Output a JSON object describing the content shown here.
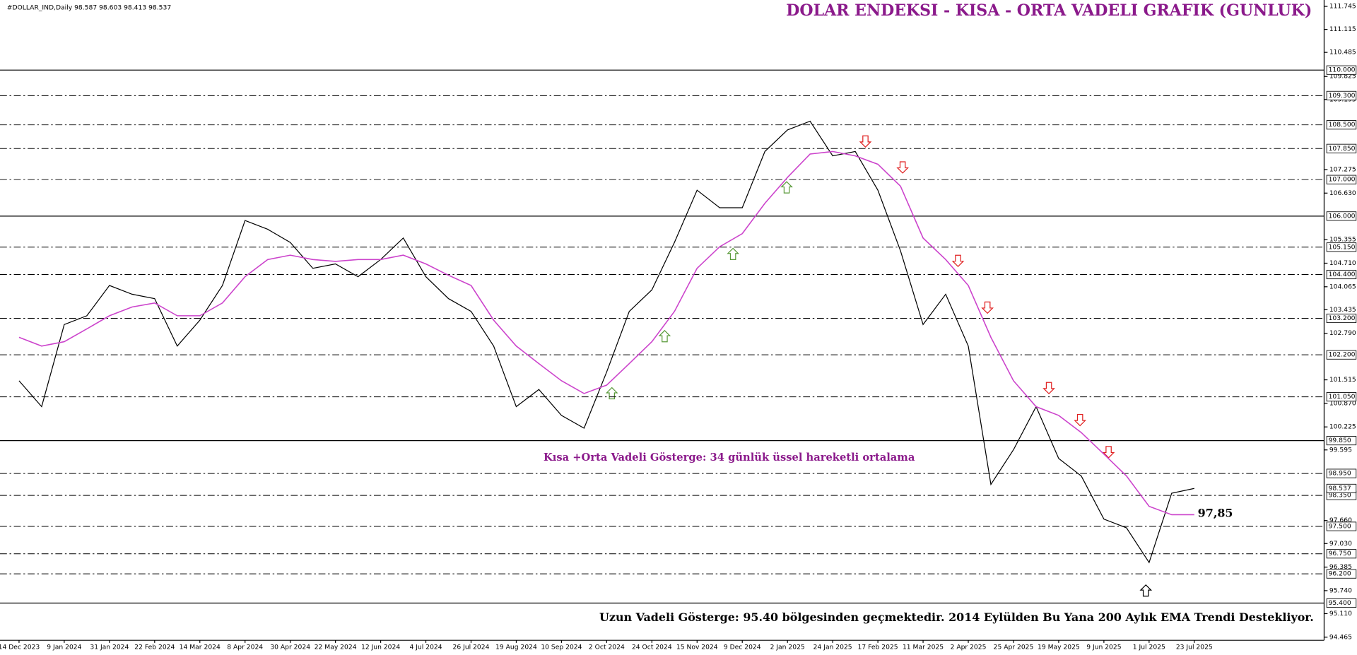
{
  "chart_data": {
    "type": "line",
    "header": "#DOLLAR_IND,Daily  98.587 98.603 98.413 98.537",
    "title": "DOLAR ENDEKSI - KISA - ORTA VADELI GRAFIK (GUNLUK)",
    "annotation": "Kısa +Orta Vadeli Gösterge: 34 günlük üssel hareketli ortalama",
    "ema_value": {
      "value": 97.85,
      "label": "97,85"
    },
    "note": "Uzun Vadeli Gösterge: 95.40 bölgesinden geçmektedir. 2014 Eylülden Bu Yana 200 Aylık EMA Trendi Destekliyor.",
    "categories": [
      "14 Dec 2023",
      null,
      "9 Jan 2024",
      null,
      "31 Jan 2024",
      null,
      "22 Feb 2024",
      null,
      "14 Mar 2024",
      null,
      "8 Apr 2024",
      null,
      "30 Apr 2024",
      null,
      "22 May 2024",
      null,
      "12 Jun 2024",
      null,
      "4 Jul 2024",
      null,
      "26 Jul 2024",
      null,
      "19 Aug 2024",
      null,
      "10 Sep 2024",
      null,
      "2 Oct 2024",
      null,
      "24 Oct 2024",
      null,
      "15 Nov 2024",
      null,
      "9 Dec 2024",
      null,
      "2 Jan 2025",
      null,
      "24 Jan 2025",
      null,
      "17 Feb 2025",
      null,
      "11 Mar 2025",
      null,
      "2 Apr 2025",
      null,
      "25 Apr 2025",
      null,
      "19 May 2025",
      null,
      "9 Jun 2025",
      null,
      "1 Jul 2025",
      null,
      "23 Jul 2025"
    ],
    "series": [
      {
        "color": "#000000",
        "values": [
          101.49,
          100.78,
          103.03,
          103.27,
          104.1,
          103.86,
          103.74,
          102.44,
          103.15,
          104.1,
          105.88,
          105.64,
          105.28,
          104.57,
          104.69,
          104.34,
          104.81,
          105.4,
          104.34,
          103.74,
          103.39,
          102.44,
          100.78,
          101.25,
          100.54,
          100.19,
          101.73,
          103.39,
          103.98,
          105.28,
          106.71,
          106.23,
          106.23,
          107.77,
          108.36,
          108.6,
          107.65,
          107.77,
          106.71,
          105.05,
          103.03,
          103.86,
          102.44,
          98.65,
          99.6,
          100.78,
          99.36,
          98.88,
          97.7,
          97.46,
          96.51,
          98.41,
          98.54
        ]
      },
      {
        "color": "#cc44cc",
        "values": [
          102.68,
          102.44,
          102.56,
          102.91,
          103.27,
          103.51,
          103.62,
          103.27,
          103.27,
          103.62,
          104.34,
          104.81,
          104.93,
          104.81,
          104.76,
          104.81,
          104.81,
          104.93,
          104.69,
          104.38,
          104.1,
          103.15,
          102.44,
          101.96,
          101.49,
          101.14,
          101.37,
          101.96,
          102.56,
          103.39,
          104.57,
          105.16,
          105.52,
          106.35,
          107.06,
          107.7,
          107.77,
          107.65,
          107.42,
          106.82,
          105.4,
          104.81,
          104.1,
          102.68,
          101.49,
          100.78,
          100.54,
          100.07,
          99.48,
          98.88,
          98.05,
          97.82,
          97.82
        ]
      }
    ],
    "ylim": [
      94.38,
      111.92
    ],
    "yticks": [
      111.745,
      111.115,
      110.485,
      109.825,
      109.195,
      107.275,
      {
        "value": 106.63,
        "label": "106.630"
      },
      105.355,
      {
        "value": 104.71,
        "label": "104.710"
      },
      104.065,
      103.435,
      {
        "value": 102.79,
        "label": "102.790"
      },
      101.515,
      {
        "value": 100.87,
        "label": "100.870"
      },
      100.225,
      99.595,
      {
        "value": 97.66,
        "label": "97.660"
      },
      {
        "value": 97.03,
        "label": "97.030"
      },
      96.385,
      {
        "value": 95.74,
        "label": "95.740"
      },
      {
        "value": 95.11,
        "label": "95.110"
      },
      94.465
    ],
    "levels": [
      {
        "value": 110,
        "label": "110.000",
        "style": "solid"
      },
      {
        "value": 109.3,
        "label": "109.300",
        "style": "dashdot"
      },
      {
        "value": 108.5,
        "label": "108.500",
        "style": "dashdot"
      },
      {
        "value": 107.85,
        "label": "107.850",
        "style": "dashdot"
      },
      {
        "value": 107,
        "label": "107.000",
        "style": "dashdot"
      },
      {
        "value": 106,
        "label": "106.000",
        "style": "solid"
      },
      {
        "value": 105.15,
        "label": "105.150",
        "style": "dashdot"
      },
      {
        "value": 104.4,
        "label": "104.400",
        "style": "dashdot"
      },
      {
        "value": 103.2,
        "label": "103.200",
        "style": "dashdot"
      },
      {
        "value": 102.2,
        "label": "102.200",
        "style": "dashdot"
      },
      {
        "value": 101.05,
        "label": "101.050",
        "style": "dashdot"
      },
      {
        "value": 99.85,
        "label": "99.850",
        "style": "solid"
      },
      {
        "value": 98.95,
        "label": "98.950",
        "style": "dashdot"
      },
      {
        "value": 98.35,
        "label": "98.350",
        "style": "dashdot"
      },
      {
        "value": 97.5,
        "label": "97.500",
        "style": "dashdot"
      },
      {
        "value": 96.75,
        "label": "96.750",
        "style": "dashdot"
      },
      {
        "value": 96.2,
        "label": "96.200",
        "style": "dashdot"
      },
      {
        "value": 95.4,
        "label": "95.400",
        "style": "solid"
      }
    ],
    "current_price": 98.537
  }
}
